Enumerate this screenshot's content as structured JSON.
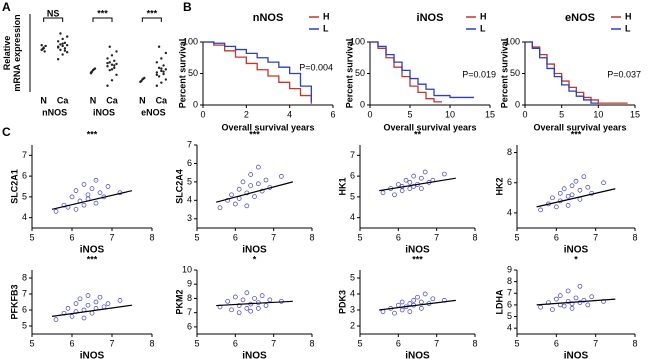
{
  "chart_data": [
    {
      "type": "dot",
      "panel": "A",
      "ylabel": "Relative\nmRNA expression",
      "subcategories": [
        "N",
        "Ca"
      ],
      "ylim": [
        0,
        10
      ],
      "groups": [
        {
          "name": "nNOS",
          "sig": "NS",
          "N": [
            5.4,
            5.7,
            5.9,
            5.5,
            5.2,
            6.0,
            5.6
          ],
          "Ca": [
            4.2,
            4.8,
            5.1,
            5.4,
            5.6,
            5.8,
            5.9,
            6.0,
            6.1,
            6.3,
            6.5,
            6.8,
            7.1,
            7.5,
            5.3,
            5.7,
            6.2
          ]
        },
        {
          "name": "iNOS",
          "sig": "***",
          "N": [
            2.5,
            2.8,
            3.0,
            2.6,
            2.9,
            2.4
          ],
          "Ca": [
            0.8,
            1.5,
            2.2,
            2.8,
            3.1,
            3.3,
            3.5,
            3.6,
            3.8,
            4.0,
            4.3,
            4.7,
            5.2,
            5.8,
            3.4,
            3.7,
            2.9
          ]
        },
        {
          "name": "eNOS",
          "sig": "***",
          "N": [
            1.3,
            1.6,
            1.8,
            1.4,
            1.7
          ],
          "Ca": [
            0.8,
            1.2,
            1.6,
            2.0,
            2.3,
            2.5,
            2.7,
            2.9,
            3.1,
            3.4,
            3.8,
            4.3,
            5.0,
            5.8,
            2.6,
            2.2,
            3.0
          ]
        }
      ]
    },
    {
      "type": "km",
      "panel": "B",
      "title": "nNOS",
      "xlabel": "Overall survival years",
      "ylabel": "Percent survival",
      "annotation": "P=0.004",
      "xlim": [
        0,
        6
      ],
      "xticks": [
        0,
        2,
        4,
        6
      ],
      "ylim": [
        0,
        100
      ],
      "yticks": [
        0,
        50,
        100
      ],
      "series": [
        {
          "name": "H",
          "color": "#c0392b",
          "x": [
            0,
            0.5,
            1,
            1.5,
            2,
            2.5,
            3,
            3.5,
            4,
            4.5,
            5
          ],
          "values": [
            100,
            95,
            86,
            76,
            66,
            56,
            46,
            36,
            26,
            15,
            2
          ]
        },
        {
          "name": "L",
          "color": "#2b3fc0",
          "x": [
            0,
            0.5,
            1,
            1.5,
            2,
            2.5,
            3,
            3.5,
            4,
            4.5,
            5
          ],
          "values": [
            100,
            98,
            93,
            88,
            82,
            75,
            68,
            60,
            50,
            30,
            5
          ]
        }
      ]
    },
    {
      "type": "km",
      "title": "iNOS",
      "xlabel": "Overall survival years",
      "ylabel": "Percent survival",
      "annotation": "P=0.019",
      "xlim": [
        0,
        15
      ],
      "xticks": [
        0,
        5,
        10,
        15
      ],
      "ylim": [
        0,
        100
      ],
      "yticks": [
        0,
        50,
        100
      ],
      "series": [
        {
          "name": "H",
          "color": "#c0392b",
          "x": [
            0,
            1,
            2,
            3,
            4,
            5,
            6,
            7,
            8,
            9
          ],
          "values": [
            100,
            90,
            75,
            60,
            45,
            30,
            20,
            10,
            5,
            5
          ]
        },
        {
          "name": "L",
          "color": "#2b3fc0",
          "x": [
            0,
            1,
            2,
            3,
            4,
            5,
            6,
            7,
            8,
            10,
            13
          ],
          "values": [
            100,
            93,
            80,
            68,
            55,
            42,
            33,
            25,
            15,
            12,
            12
          ]
        }
      ]
    },
    {
      "type": "km",
      "title": "eNOS",
      "xlabel": "Overall survival years",
      "ylabel": "Percent survival",
      "annotation": "P=0.037",
      "xlim": [
        0,
        15
      ],
      "xticks": [
        0,
        5,
        10,
        15
      ],
      "ylim": [
        0,
        100
      ],
      "yticks": [
        0,
        50,
        100
      ],
      "series": [
        {
          "name": "H",
          "color": "#c0392b",
          "x": [
            0,
            1,
            2,
            3,
            4,
            5,
            6,
            7,
            8,
            9,
            10,
            14
          ],
          "values": [
            100,
            92,
            80,
            65,
            50,
            38,
            28,
            20,
            12,
            8,
            3,
            3
          ]
        },
        {
          "name": "L",
          "color": "#2b3fc0",
          "x": [
            0,
            1,
            2,
            3,
            4,
            5,
            6,
            7,
            8,
            9,
            10
          ],
          "values": [
            100,
            90,
            75,
            58,
            45,
            32,
            22,
            14,
            8,
            3,
            3
          ]
        }
      ]
    },
    {
      "type": "scatter",
      "panel": "C",
      "ylabel": "SLC2A1",
      "xlabel": "iNOS",
      "sig": "***",
      "color": "#3d3dc8",
      "xlim": [
        5,
        8
      ],
      "xticks": [
        5,
        6,
        7,
        8
      ],
      "ylim": [
        3.5,
        7.5
      ],
      "yticks": [
        4,
        5,
        6,
        7
      ],
      "x": [
        5.6,
        5.8,
        5.9,
        6.0,
        6.1,
        6.1,
        6.2,
        6.3,
        6.3,
        6.4,
        6.4,
        6.5,
        6.6,
        6.6,
        6.7,
        6.8,
        6.9,
        7.2
      ],
      "values": [
        4.3,
        4.6,
        4.5,
        5.0,
        4.4,
        5.3,
        4.8,
        5.6,
        4.6,
        5.1,
        4.9,
        5.4,
        4.7,
        5.8,
        5.2,
        5.0,
        5.5,
        5.2
      ],
      "trend": {
        "x": [
          5.5,
          7.5
        ],
        "y": [
          4.4,
          5.3
        ]
      }
    },
    {
      "type": "scatter",
      "ylabel": "SLC2A4",
      "xlabel": "iNOS",
      "sig": "***",
      "color": "#3d3dc8",
      "xlim": [
        5,
        8
      ],
      "xticks": [
        5,
        6,
        7,
        8
      ],
      "ylim": [
        2.5,
        7
      ],
      "yticks": [
        3,
        4,
        5,
        6,
        7
      ],
      "x": [
        5.6,
        5.8,
        5.9,
        6.0,
        6.1,
        6.1,
        6.2,
        6.3,
        6.3,
        6.4,
        6.4,
        6.5,
        6.6,
        6.6,
        6.7,
        6.8,
        6.9,
        7.2
      ],
      "values": [
        3.6,
        4.0,
        4.3,
        3.8,
        4.6,
        4.1,
        5.0,
        4.4,
        3.7,
        4.8,
        5.4,
        4.2,
        4.9,
        5.8,
        4.5,
        5.1,
        4.7,
        5.3
      ],
      "trend": {
        "x": [
          5.5,
          7.5
        ],
        "y": [
          3.9,
          5.0
        ]
      }
    },
    {
      "type": "scatter",
      "ylabel": "HK1",
      "xlabel": "iNOS",
      "sig": "**",
      "color": "#3d3dc8",
      "xlim": [
        5,
        8
      ],
      "xticks": [
        5,
        6,
        7,
        8
      ],
      "ylim": [
        3.5,
        7.5
      ],
      "yticks": [
        4,
        5,
        6,
        7
      ],
      "x": [
        5.6,
        5.8,
        5.9,
        6.0,
        6.1,
        6.1,
        6.2,
        6.3,
        6.3,
        6.4,
        6.4,
        6.5,
        6.6,
        6.6,
        6.7,
        6.8,
        6.9,
        7.2
      ],
      "values": [
        5.2,
        5.4,
        5.1,
        5.6,
        5.5,
        5.3,
        5.8,
        5.4,
        5.7,
        5.5,
        6.0,
        5.6,
        5.9,
        5.4,
        6.2,
        5.7,
        5.8,
        6.1
      ],
      "trend": {
        "x": [
          5.5,
          7.5
        ],
        "y": [
          5.3,
          5.9
        ]
      }
    },
    {
      "type": "scatter",
      "ylabel": "HK2",
      "xlabel": "iNOS",
      "sig": "***",
      "color": "#3d3dc8",
      "xlim": [
        5,
        8
      ],
      "xticks": [
        5,
        6,
        7,
        8
      ],
      "ylim": [
        3,
        8.5
      ],
      "yticks": [
        4,
        6,
        8
      ],
      "x": [
        5.6,
        5.8,
        5.9,
        6.0,
        6.1,
        6.1,
        6.2,
        6.3,
        6.3,
        6.4,
        6.4,
        6.5,
        6.6,
        6.6,
        6.7,
        6.8,
        6.9,
        7.2
      ],
      "values": [
        4.2,
        4.6,
        5.0,
        4.4,
        5.3,
        4.8,
        5.6,
        5.1,
        4.5,
        5.8,
        5.2,
        6.1,
        4.9,
        5.5,
        6.4,
        5.7,
        5.3,
        6.0
      ],
      "trend": {
        "x": [
          5.5,
          7.5
        ],
        "y": [
          4.4,
          5.6
        ]
      }
    },
    {
      "type": "scatter",
      "ylabel": "PFKFB3",
      "xlabel": "iNOS",
      "sig": "***",
      "color": "#3d3dc8",
      "xlim": [
        5,
        8
      ],
      "xticks": [
        5,
        6,
        7,
        8
      ],
      "ylim": [
        4.5,
        8.5
      ],
      "yticks": [
        5,
        6,
        7,
        8
      ],
      "x": [
        5.6,
        5.8,
        5.9,
        6.0,
        6.1,
        6.1,
        6.2,
        6.3,
        6.3,
        6.4,
        6.4,
        6.5,
        6.6,
        6.6,
        6.7,
        6.8,
        6.9,
        7.2
      ],
      "values": [
        5.4,
        5.8,
        6.1,
        5.6,
        6.4,
        5.9,
        6.7,
        6.0,
        5.5,
        6.3,
        6.9,
        5.8,
        6.5,
        6.1,
        6.8,
        6.2,
        6.4,
        6.6
      ],
      "trend": {
        "x": [
          5.5,
          7.5
        ],
        "y": [
          5.6,
          6.3
        ]
      }
    },
    {
      "type": "scatter",
      "ylabel": "PKM2",
      "xlabel": "iNOS",
      "sig": "*",
      "color": "#3d3dc8",
      "xlim": [
        5,
        8
      ],
      "xticks": [
        5,
        6,
        7,
        8
      ],
      "ylim": [
        5.5,
        10
      ],
      "yticks": [
        6,
        7,
        8,
        9,
        10
      ],
      "x": [
        5.6,
        5.8,
        5.9,
        6.0,
        6.1,
        6.1,
        6.2,
        6.3,
        6.3,
        6.4,
        6.4,
        6.5,
        6.6,
        6.6,
        6.7,
        6.8,
        6.9,
        7.2
      ],
      "values": [
        7.4,
        7.8,
        7.2,
        8.1,
        7.5,
        7.0,
        7.9,
        7.3,
        8.4,
        7.6,
        7.1,
        8.0,
        7.7,
        7.3,
        8.2,
        7.5,
        7.9,
        7.8
      ],
      "trend": {
        "x": [
          5.5,
          7.5
        ],
        "y": [
          7.5,
          7.8
        ]
      }
    },
    {
      "type": "scatter",
      "ylabel": "PDK3",
      "xlabel": "iNOS",
      "sig": "***",
      "color": "#3d3dc8",
      "xlim": [
        5,
        8
      ],
      "xticks": [
        5,
        6,
        7,
        8
      ],
      "ylim": [
        1.5,
        5.5
      ],
      "yticks": [
        2,
        3,
        4,
        5
      ],
      "x": [
        5.6,
        5.8,
        5.9,
        6.0,
        6.1,
        6.1,
        6.2,
        6.3,
        6.3,
        6.4,
        6.4,
        6.5,
        6.6,
        6.6,
        6.7,
        6.8,
        6.9,
        7.2
      ],
      "values": [
        2.9,
        3.1,
        2.8,
        3.3,
        3.0,
        3.5,
        3.2,
        3.4,
        2.9,
        3.6,
        3.3,
        3.8,
        3.1,
        3.5,
        4.0,
        3.4,
        3.7,
        3.6
      ],
      "trend": {
        "x": [
          5.5,
          7.5
        ],
        "y": [
          3.0,
          3.6
        ]
      }
    },
    {
      "type": "scatter",
      "ylabel": "LDHA",
      "xlabel": "iNOS",
      "sig": "*",
      "color": "#3d3dc8",
      "xlim": [
        5,
        8
      ],
      "xticks": [
        5,
        6,
        7,
        8
      ],
      "ylim": [
        3.5,
        9
      ],
      "yticks": [
        4,
        5,
        6,
        7,
        8,
        9
      ],
      "x": [
        5.6,
        5.8,
        5.9,
        6.0,
        6.1,
        6.1,
        6.2,
        6.3,
        6.3,
        6.4,
        6.4,
        6.5,
        6.6,
        6.6,
        6.7,
        6.8,
        6.9,
        7.2
      ],
      "values": [
        5.8,
        6.2,
        5.6,
        6.5,
        6.0,
        6.8,
        5.9,
        6.3,
        7.2,
        6.1,
        5.7,
        6.6,
        6.2,
        7.6,
        6.4,
        6.0,
        6.7,
        6.3
      ],
      "trend": {
        "x": [
          5.5,
          7.5
        ],
        "y": [
          6.0,
          6.5
        ]
      }
    }
  ]
}
